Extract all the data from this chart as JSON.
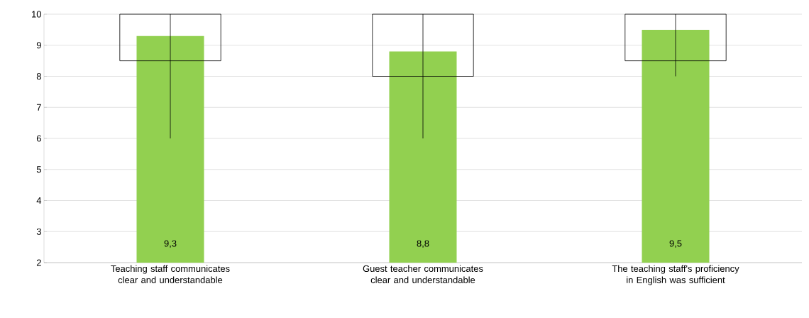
{
  "chart_data": {
    "type": "bar",
    "categories": [
      "Teaching staff communicates clear and understandable",
      "Guest teacher communicates clear and understandable",
      "The teaching staff's proficiency in English was sufficient"
    ],
    "ylim": [
      2,
      10
    ],
    "yticks": [
      2,
      3,
      4,
      5,
      6,
      7,
      8,
      9,
      10
    ],
    "grid": "y",
    "series": [
      {
        "color": "#92d050",
        "values": [
          9.3,
          8.8,
          9.5
        ],
        "value_labels": [
          "9,3",
          "8,8",
          "9,5"
        ]
      },
      {
        "type": "box",
        "color": "#000000",
        "boxes": [
          {
            "low": 6,
            "q1": 8.5,
            "q3": 10,
            "high": 10
          },
          {
            "low": 6,
            "q1": 8,
            "q3": 10,
            "high": 10
          },
          {
            "low": 8,
            "q1": 8.5,
            "q3": 10,
            "high": 10
          }
        ]
      }
    ]
  }
}
